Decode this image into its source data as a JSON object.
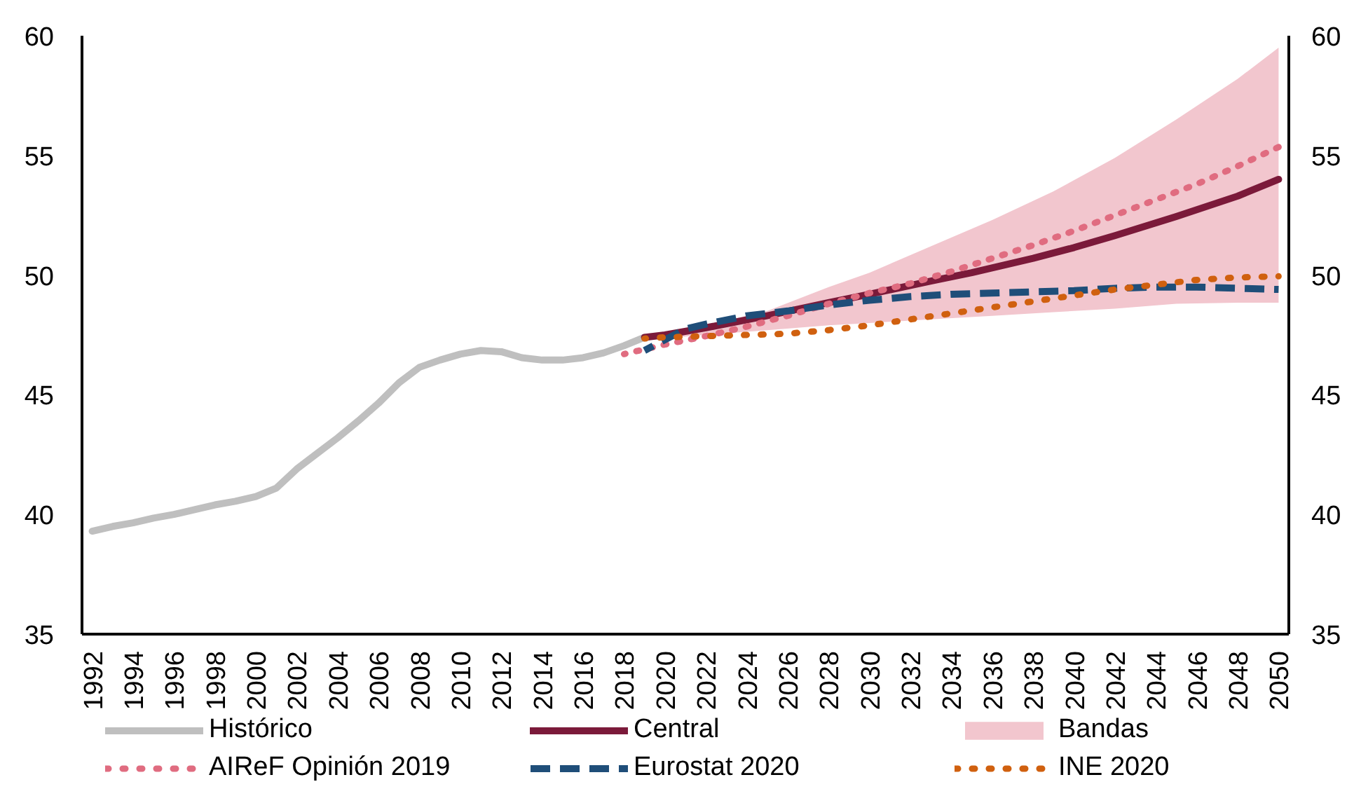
{
  "chart_data": {
    "type": "line",
    "xlim": [
      1991.5,
      2050.5
    ],
    "xticks": [
      1992,
      1994,
      1996,
      1998,
      2000,
      2002,
      2004,
      2006,
      2008,
      2010,
      2012,
      2014,
      2016,
      2018,
      2020,
      2022,
      2024,
      2026,
      2028,
      2030,
      2032,
      2034,
      2036,
      2038,
      2040,
      2042,
      2044,
      2046,
      2048,
      2050
    ],
    "ylim": [
      35,
      60
    ],
    "yticks": [
      35,
      40,
      45,
      50,
      55,
      60
    ],
    "y2lim": [
      35,
      60
    ],
    "y2ticks": [
      35,
      40,
      45,
      50,
      55,
      60
    ],
    "legend": "bottom",
    "series": [
      {
        "name": "Histórico",
        "color": "#bfbfbf",
        "line_style": "solid",
        "x": [
          1992,
          1993,
          1994,
          1995,
          1996,
          1997,
          1998,
          1999,
          2000,
          2001,
          2002,
          2003,
          2004,
          2005,
          2006,
          2007,
          2008,
          2009,
          2010,
          2011,
          2012,
          2013,
          2014,
          2015,
          2016,
          2017,
          2018,
          2019
        ],
        "values": [
          39.3,
          39.5,
          39.65,
          39.85,
          40.0,
          40.2,
          40.4,
          40.55,
          40.75,
          41.1,
          41.9,
          42.55,
          43.2,
          43.9,
          44.65,
          45.5,
          46.15,
          46.45,
          46.7,
          46.85,
          46.8,
          46.55,
          46.45,
          46.45,
          46.55,
          46.75,
          47.05,
          47.4
        ]
      },
      {
        "name": "Central",
        "color": "#7b1a3a",
        "line_style": "solid",
        "x": [
          2019,
          2020,
          2022,
          2025,
          2028,
          2030,
          2033,
          2035,
          2038,
          2040,
          2042,
          2045,
          2048,
          2050
        ],
        "values": [
          47.4,
          47.5,
          47.8,
          48.3,
          48.85,
          49.2,
          49.75,
          50.1,
          50.7,
          51.15,
          51.65,
          52.45,
          53.3,
          54.0
        ]
      },
      {
        "name": "Bandas",
        "type": "area",
        "color": "#f2c6ce",
        "x": [
          2019,
          2022,
          2025,
          2028,
          2030,
          2033,
          2036,
          2039,
          2042,
          2045,
          2048,
          2050
        ],
        "values": [
          null,
          null,
          null,
          null,
          null,
          null,
          null,
          null,
          null,
          null,
          null,
          null
        ],
        "lower": [
          47.3,
          47.5,
          47.7,
          47.9,
          48.0,
          48.15,
          48.3,
          48.45,
          48.6,
          48.8,
          48.85,
          48.85
        ],
        "upper": [
          47.3,
          47.9,
          48.5,
          49.5,
          50.1,
          51.2,
          52.3,
          53.5,
          54.9,
          56.5,
          58.2,
          59.5
        ]
      },
      {
        "name": "AIReF Opinión 2019",
        "color": "#e06c80",
        "line_style": "dotted",
        "x": [
          2018,
          2020,
          2022,
          2024,
          2026,
          2028,
          2030,
          2032,
          2034,
          2036,
          2038,
          2040,
          2042,
          2044,
          2046,
          2048,
          2050
        ],
        "values": [
          46.7,
          47.1,
          47.45,
          47.85,
          48.3,
          48.8,
          49.25,
          49.65,
          50.15,
          50.7,
          51.25,
          51.85,
          52.5,
          53.15,
          53.8,
          54.55,
          55.35
        ]
      },
      {
        "name": "Eurostat 2020",
        "color": "#1f4e79",
        "line_style": "dashed",
        "x": [
          2019,
          2020,
          2021,
          2022,
          2024,
          2026,
          2028,
          2030,
          2032,
          2034,
          2036,
          2038,
          2040,
          2042,
          2044,
          2046,
          2048,
          2050
        ],
        "values": [
          46.85,
          47.3,
          47.75,
          47.95,
          48.3,
          48.5,
          48.75,
          48.95,
          49.1,
          49.2,
          49.25,
          49.3,
          49.35,
          49.45,
          49.5,
          49.5,
          49.45,
          49.4
        ]
      },
      {
        "name": "INE 2020",
        "color": "#d0600f",
        "line_style": "dotted",
        "x": [
          2019,
          2020,
          2022,
          2024,
          2026,
          2028,
          2030,
          2032,
          2034,
          2036,
          2038,
          2040,
          2042,
          2044,
          2046,
          2048,
          2050
        ],
        "values": [
          47.35,
          47.4,
          47.45,
          47.5,
          47.55,
          47.7,
          47.9,
          48.15,
          48.4,
          48.65,
          48.9,
          49.15,
          49.4,
          49.6,
          49.8,
          49.9,
          49.95
        ]
      }
    ]
  }
}
